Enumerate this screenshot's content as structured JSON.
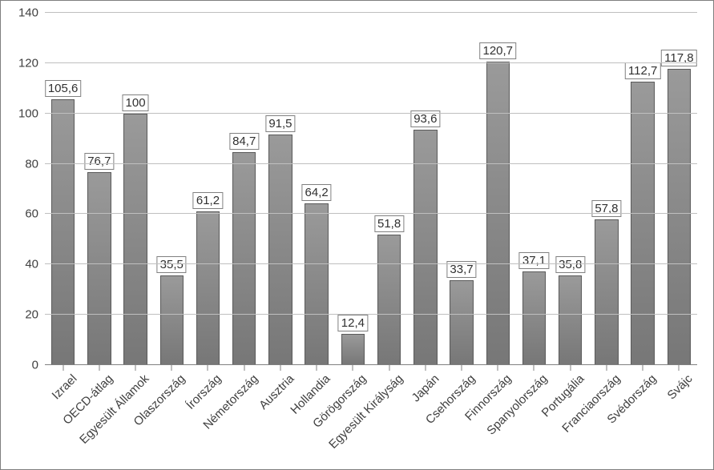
{
  "chart": {
    "type": "bar",
    "ylim": [
      0,
      140
    ],
    "ytick_step": 20,
    "yticks": [
      0,
      20,
      40,
      60,
      80,
      100,
      120,
      140
    ],
    "grid_color": "#bfbfbf",
    "baseline_color": "#808080",
    "bar_fill_top": "#9a9a9a",
    "bar_fill_bottom": "#777777",
    "bar_border_color": "#5a5a5a",
    "background_color": "#ffffff",
    "frame_border_color": "#7f7f7f",
    "axis_label_color": "#404040",
    "axis_label_fontsize": 15,
    "data_label_fontsize": 15,
    "data_label_border_color": "#808080",
    "data_label_bg": "#ffffff",
    "bar_width_ratio": 0.65,
    "decimal_separator": ",",
    "categories": [
      "Izrael",
      "OECD-átlag",
      "Egyesült Államok",
      "Olaszország",
      "Írország",
      "Németország",
      "Ausztria",
      "Hollandia",
      "Görögország",
      "Egyesült Királyság",
      "Japán",
      "Csehország",
      "Finnország",
      "Spanyolország",
      "Portugália",
      "Franciaország",
      "Svédország",
      "Svájc"
    ],
    "values": [
      105.6,
      76.7,
      100,
      35.5,
      61.2,
      84.7,
      91.5,
      64.2,
      12.4,
      51.8,
      93.6,
      33.7,
      120.7,
      37.1,
      35.8,
      57.8,
      112.7,
      117.8
    ],
    "value_labels": [
      "105,6",
      "76,7",
      "100",
      "35,5",
      "61,2",
      "84,7",
      "91,5",
      "64,2",
      "12,4",
      "51,8",
      "93,6",
      "33,7",
      "120,7",
      "37,1",
      "35,8",
      "57,8",
      "112,7",
      "117,8"
    ]
  }
}
